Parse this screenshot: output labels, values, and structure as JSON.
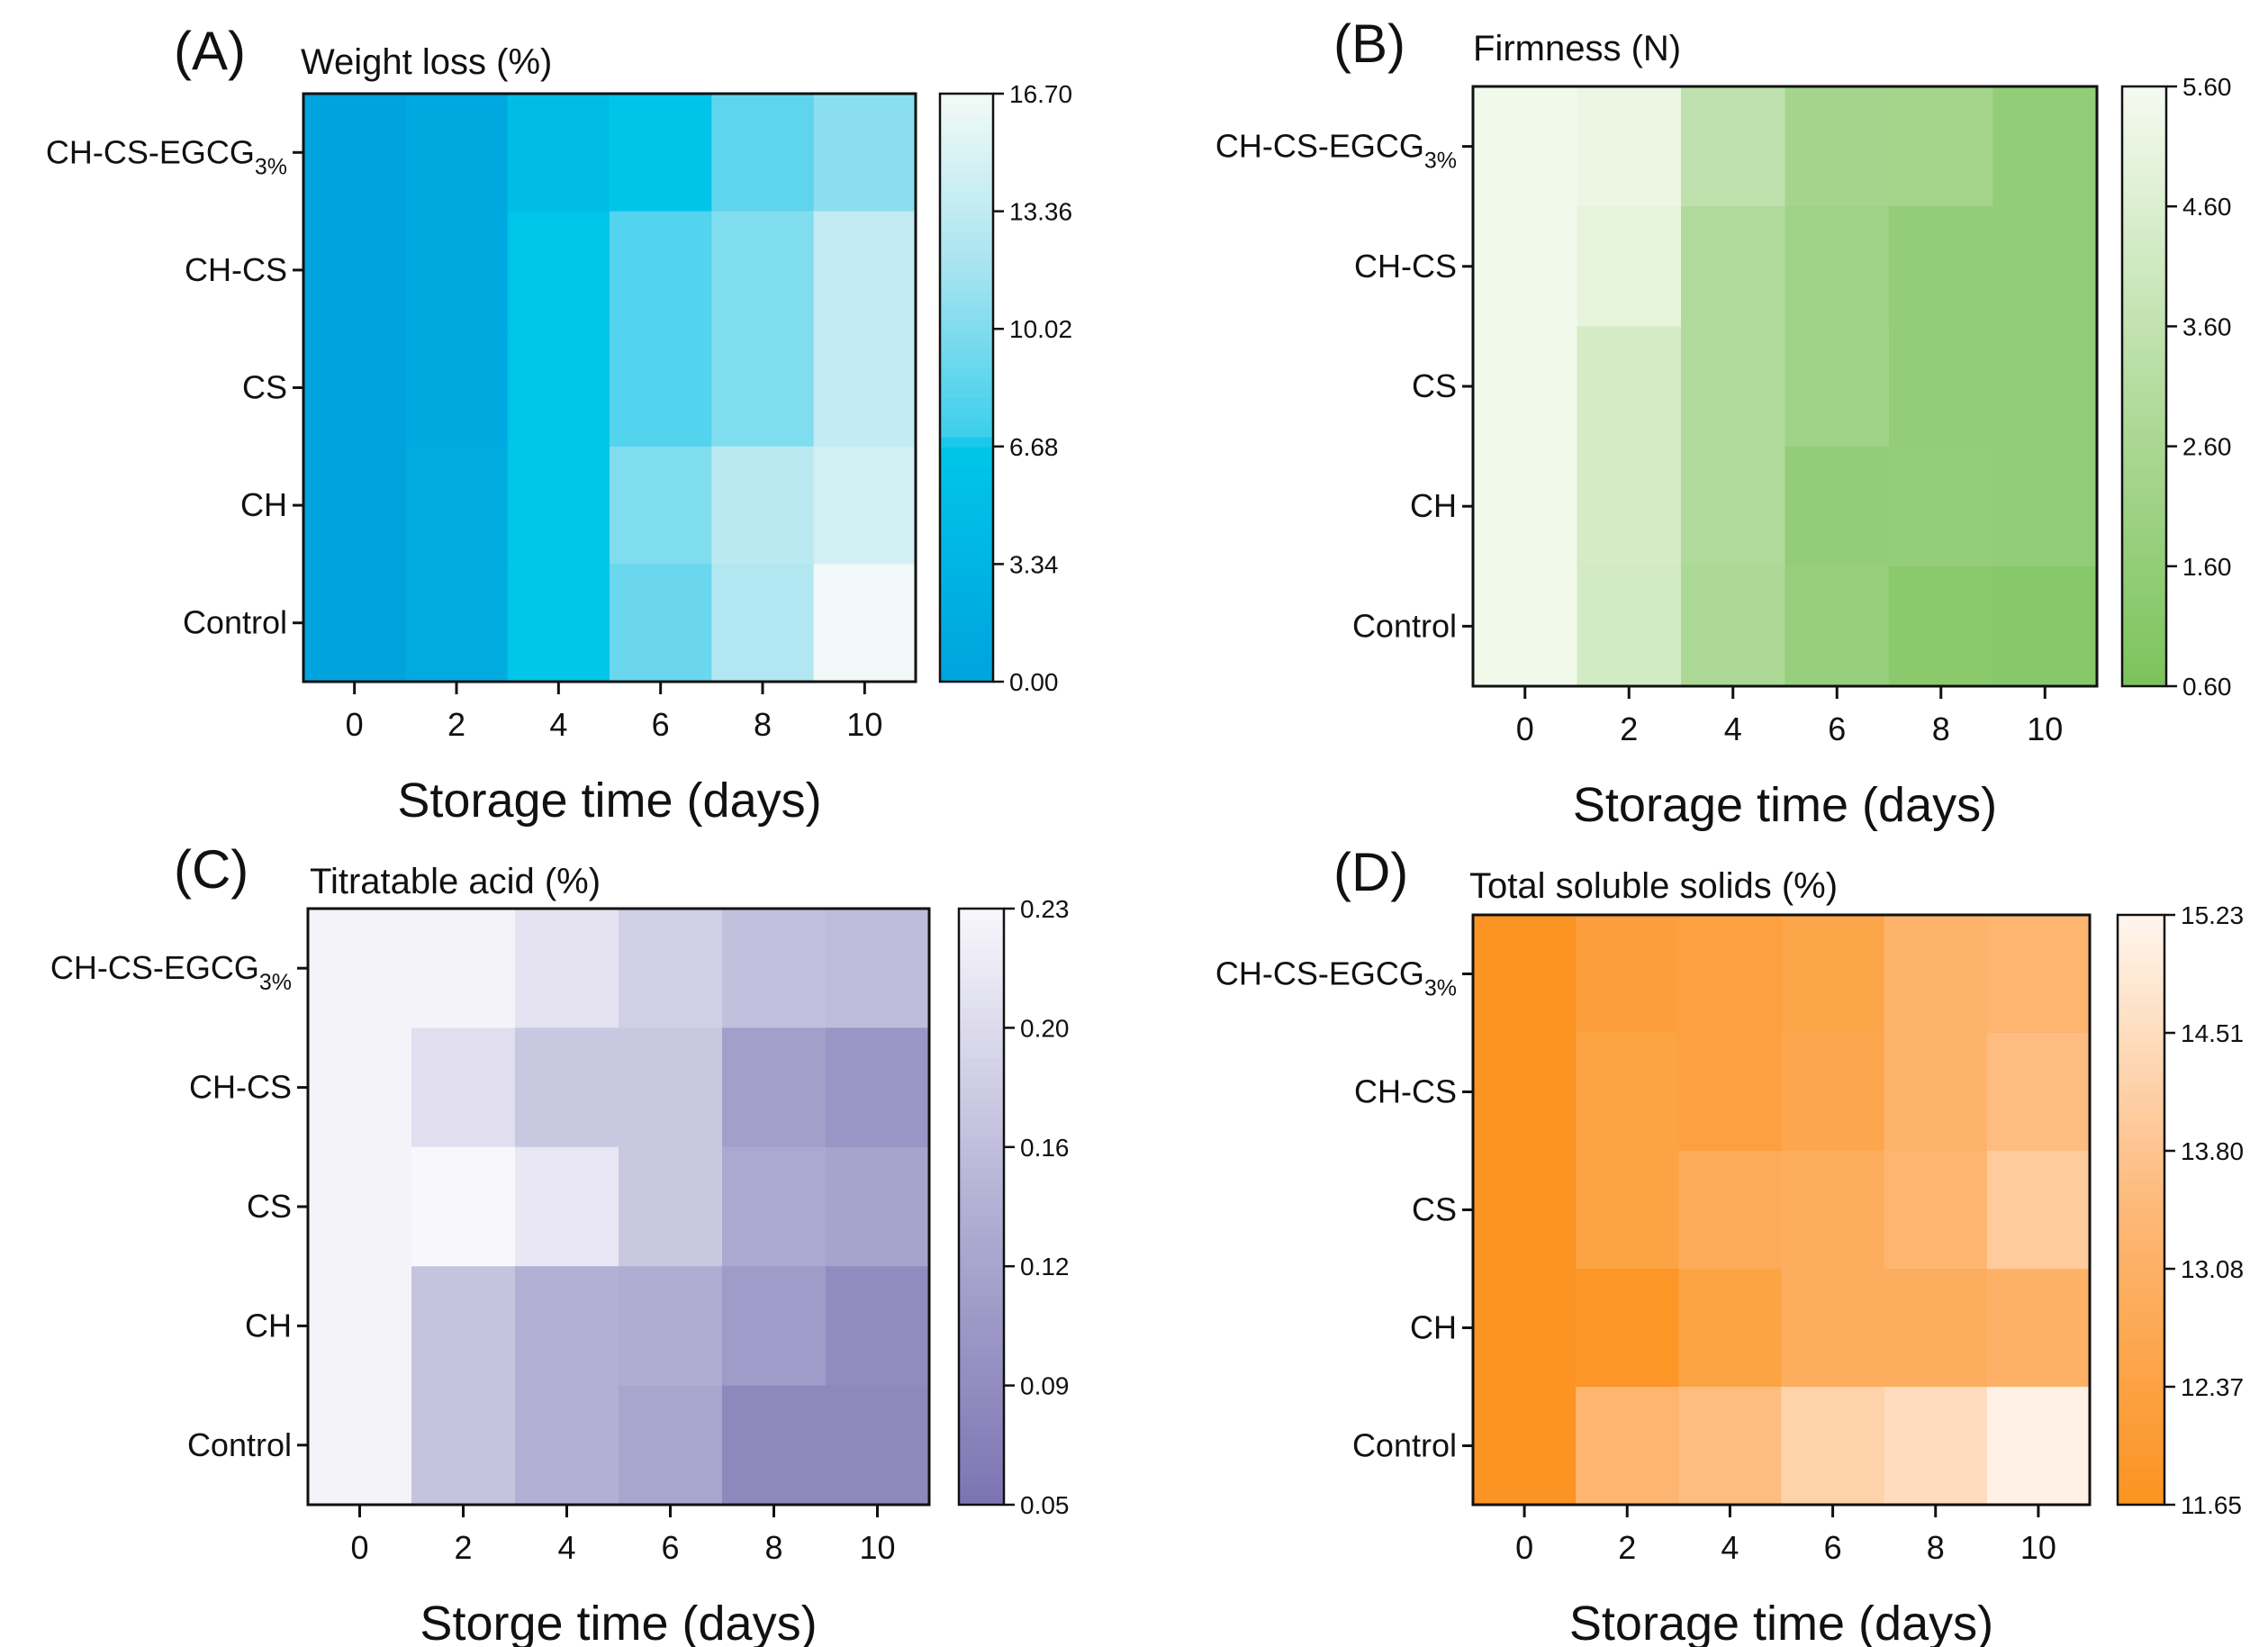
{
  "chart_data": [
    {
      "type": "heatmap",
      "panel_label": "(A)",
      "title": "Weight loss (%)",
      "xlabel": "Storage time (days)",
      "x": [
        "0",
        "2",
        "4",
        "6",
        "8",
        "10"
      ],
      "rows": [
        {
          "text": "CH-CS-EGCG",
          "sub": "3%"
        },
        {
          "text": "CH-CS",
          "sub": ""
        },
        {
          "text": "CS",
          "sub": ""
        },
        {
          "text": "CH",
          "sub": ""
        },
        {
          "text": "Control",
          "sub": ""
        }
      ],
      "values": [
        [
          0,
          1.0,
          5.0,
          6.5,
          8.5,
          10.5
        ],
        [
          0,
          1.0,
          6.68,
          8.0,
          10.0,
          13.5
        ],
        [
          0,
          1.0,
          6.68,
          8.0,
          10.0,
          13.5
        ],
        [
          0,
          1.5,
          6.68,
          10.0,
          13.0,
          14.5
        ],
        [
          0,
          1.5,
          6.68,
          9.0,
          12.5,
          16.5
        ]
      ],
      "range": [
        0.0,
        16.7
      ],
      "colorbar_ticks": [
        "0.00",
        "3.34",
        "6.68",
        "10.02",
        "13.36",
        "16.70"
      ],
      "colormap": [
        [
          0,
          "#00a3de"
        ],
        [
          0.4,
          "#00c6e9"
        ],
        [
          0.42,
          "#3dcfec"
        ],
        [
          0.7,
          "#a6e3f0"
        ],
        [
          1,
          "#f3faf7"
        ]
      ]
    },
    {
      "type": "heatmap",
      "panel_label": "(B)",
      "title": "Firmness (N)",
      "xlabel": "Storage time (days)",
      "x": [
        "0",
        "2",
        "4",
        "6",
        "8",
        "10"
      ],
      "rows": [
        {
          "text": "CH-CS-EGCG",
          "sub": "3%"
        },
        {
          "text": "CH-CS",
          "sub": ""
        },
        {
          "text": "CS",
          "sub": ""
        },
        {
          "text": "CH",
          "sub": ""
        },
        {
          "text": "Control",
          "sub": ""
        }
      ],
      "values": [
        [
          5.45,
          5.2,
          3.5,
          2.4,
          2.3,
          1.6
        ],
        [
          5.45,
          5.0,
          2.9,
          2.1,
          1.6,
          1.6
        ],
        [
          5.45,
          4.3,
          2.9,
          2.2,
          1.6,
          1.6
        ],
        [
          5.45,
          4.3,
          2.9,
          1.6,
          1.7,
          1.6
        ],
        [
          5.45,
          4.2,
          2.7,
          1.8,
          1.2,
          1.1
        ]
      ],
      "range": [
        0.6,
        5.6
      ],
      "colorbar_ticks": [
        "0.60",
        "1.60",
        "2.60",
        "3.60",
        "4.60",
        "5.60"
      ],
      "colormap": [
        [
          0,
          "#7cc35c"
        ],
        [
          0.5,
          "#b5dca0"
        ],
        [
          1,
          "#f5fbf0"
        ]
      ]
    },
    {
      "type": "heatmap",
      "panel_label": "(C)",
      "title": "Titratable acid (%)",
      "xlabel": "Storge time (days)",
      "x": [
        "0",
        "2",
        "4",
        "6",
        "8",
        "10"
      ],
      "rows": [
        {
          "text": "CH-CS-EGCG",
          "sub": "3%"
        },
        {
          "text": "CH-CS",
          "sub": ""
        },
        {
          "text": "CS",
          "sub": ""
        },
        {
          "text": "CH",
          "sub": ""
        },
        {
          "text": "Control",
          "sub": ""
        }
      ],
      "values": [
        [
          0.225,
          0.225,
          0.205,
          0.18,
          0.16,
          0.155
        ],
        [
          0.225,
          0.2,
          0.17,
          0.17,
          0.115,
          0.1
        ],
        [
          0.225,
          0.23,
          0.21,
          0.17,
          0.13,
          0.12
        ],
        [
          0.225,
          0.165,
          0.14,
          0.135,
          0.11,
          0.085
        ],
        [
          0.225,
          0.165,
          0.14,
          0.125,
          0.08,
          0.08
        ]
      ],
      "range": [
        0.05,
        0.23
      ],
      "colorbar_ticks": [
        "0.05",
        "0.09",
        "0.12",
        "0.16",
        "0.20",
        "0.23"
      ],
      "colormap": [
        [
          0,
          "#7c74b2"
        ],
        [
          0.5,
          "#b2b0d4"
        ],
        [
          1,
          "#f8f7fc"
        ]
      ]
    },
    {
      "type": "heatmap",
      "panel_label": "(D)",
      "title": "Total soluble solids (%)",
      "xlabel": "Storage time (days)",
      "x": [
        "0",
        "2",
        "4",
        "6",
        "8",
        "10"
      ],
      "rows": [
        {
          "text": "CH-CS-EGCG",
          "sub": "3%"
        },
        {
          "text": "CH-CS",
          "sub": ""
        },
        {
          "text": "CS",
          "sub": ""
        },
        {
          "text": "CH",
          "sub": ""
        },
        {
          "text": "Control",
          "sub": ""
        }
      ],
      "values": [
        [
          11.7,
          12.2,
          12.3,
          12.5,
          13.2,
          13.3
        ],
        [
          11.7,
          12.4,
          12.3,
          12.6,
          13.2,
          13.6
        ],
        [
          11.7,
          12.4,
          12.8,
          12.9,
          13.3,
          14.0
        ],
        [
          11.7,
          11.8,
          12.4,
          12.9,
          12.9,
          13.1
        ],
        [
          11.7,
          13.3,
          13.6,
          14.2,
          14.5,
          15.1
        ]
      ],
      "range": [
        11.65,
        15.23
      ],
      "colorbar_ticks": [
        "11.65",
        "12.37",
        "13.08",
        "13.80",
        "14.51",
        "15.23"
      ],
      "colormap": [
        [
          0,
          "#fb9320"
        ],
        [
          0.5,
          "#fdb877"
        ],
        [
          1,
          "#fff5ee"
        ]
      ]
    }
  ]
}
